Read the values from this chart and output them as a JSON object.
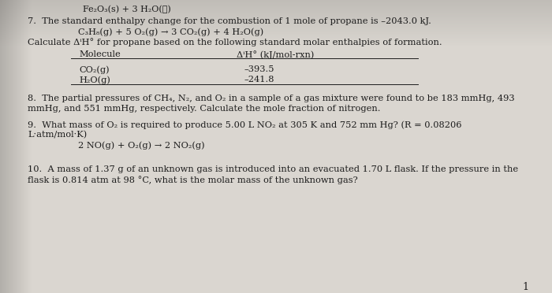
{
  "background_color": "#c8c4be",
  "paper_color": "#dedad4",
  "top_text": "Fe₂O₃(s) + 3 H₂O(ℓ)",
  "q7_line1": "7.  The standard enthalpy change for the combustion of 1 mole of propane is –2043.0 kJ.",
  "q7_line2": "        C₃H₈(g) + 5 O₂(g) → 3 CO₂(g) + 4 H₂O(g)",
  "q7_line3": "Calculate ΔⁱH° for propane based on the following standard molar enthalpies of formation.",
  "table_header_mol": "Molecule",
  "table_header_dh": "ΔⁱH° (kJ/mol-rxn)",
  "table_row1_mol": "CO₂(g)",
  "table_row1_dh": "–393.5",
  "table_row2_mol": "H₂O(g)",
  "table_row2_dh": "–241.8",
  "q8_line1": "8.  The partial pressures of CH₄, N₂, and O₂ in a sample of a gas mixture were found to be 183 mmHg, 493",
  "q8_line2": "mmHg, and 551 mmHg, respectively. Calculate the mole fraction of nitrogen.",
  "q9_line1": "9.  What mass of O₂ is required to produce 5.00 L NO₂ at 305 K and 752 mm Hg? (R = 0.08206",
  "q9_line2": "L·atm/mol·K)",
  "q9_line3": "        2 NO(g) + O₂(g) → 2 NO₂(g)",
  "q10_line1": "10.  A mass of 1.37 g of an unknown gas is introduced into an evacuated 1.70 L flask. If the pressure in the",
  "q10_line2": "flask is 0.814 atm at 98 °C, what is the molar mass of the unknown gas?",
  "page_number": "1",
  "text_color": "#1c1c1c"
}
